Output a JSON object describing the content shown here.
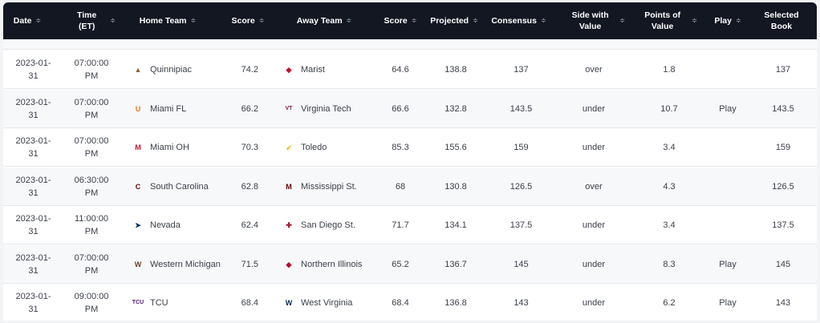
{
  "header": {
    "date": "Date",
    "time": "Time\n(ET)",
    "home_team": "Home Team",
    "home_score": "Score",
    "away_team": "Away Team",
    "away_score": "Score",
    "projected": "Projected",
    "consensus": "Consensus",
    "side_with_value": "Side with\nValue",
    "points_of_value": "Points of\nValue",
    "play": "Play",
    "selected_book": "Selected\nBook",
    "sort_glyph": "≑"
  },
  "rows": [
    {
      "date": "2023-01-\n31",
      "time": "07:00:00\nPM",
      "home": "Quinnipiac",
      "home_icon": "bobcat-logo-icon",
      "home_color": "#8a6a2f",
      "home_score": "74.2",
      "away": "Marist",
      "away_icon": "red-fox-logo-icon",
      "away_color": "#c8102e",
      "away_score": "64.6",
      "projected": "138.8",
      "consensus": "137",
      "side": "over",
      "pov": "1.8",
      "play": "",
      "book": "137"
    },
    {
      "date": "2023-01-\n31",
      "time": "07:00:00\nPM",
      "home": "Miami FL",
      "home_icon": "u-logo-icon",
      "home_color": "#f47321",
      "home_score": "66.2",
      "away": "Virginia Tech",
      "away_icon": "vt-logo-icon",
      "away_color": "#861f41",
      "away_score": "66.6",
      "projected": "132.8",
      "consensus": "143.5",
      "side": "under",
      "pov": "10.7",
      "play": "Play",
      "book": "143.5"
    },
    {
      "date": "2023-01-\n31",
      "time": "07:00:00\nPM",
      "home": "Miami OH",
      "home_icon": "m-logo-icon",
      "home_color": "#c3142d",
      "home_score": "70.3",
      "away": "Toledo",
      "away_icon": "rocket-logo-icon",
      "away_color": "#e6b800",
      "away_score": "85.3",
      "projected": "155.6",
      "consensus": "159",
      "side": "under",
      "pov": "3.4",
      "play": "",
      "book": "159"
    },
    {
      "date": "2023-01-\n31",
      "time": "06:30:00\nPM",
      "home": "South Carolina",
      "home_icon": "c-logo-icon",
      "home_color": "#73000a",
      "home_score": "62.8",
      "away": "Mississippi St.",
      "away_icon": "ms-logo-icon",
      "away_color": "#660000",
      "away_score": "68",
      "projected": "130.8",
      "consensus": "126.5",
      "side": "over",
      "pov": "4.3",
      "play": "",
      "book": "126.5"
    },
    {
      "date": "2023-01-\n31",
      "time": "11:00:00\nPM",
      "home": "Nevada",
      "home_icon": "wolf-logo-icon",
      "home_color": "#003366",
      "home_score": "62.4",
      "away": "San Diego St.",
      "away_icon": "sd-logo-icon",
      "away_color": "#a6192e",
      "away_score": "71.7",
      "projected": "134.1",
      "consensus": "137.5",
      "side": "under",
      "pov": "3.4",
      "play": "",
      "book": "137.5"
    },
    {
      "date": "2023-01-\n31",
      "time": "07:00:00\nPM",
      "home": "Western Michigan",
      "home_icon": "w-logo-icon",
      "home_color": "#6c4023",
      "home_score": "71.5",
      "away": "Northern Illinois",
      "away_icon": "husky-logo-icon",
      "away_color": "#ba0c2f",
      "away_score": "65.2",
      "projected": "136.7",
      "consensus": "145",
      "side": "under",
      "pov": "8.3",
      "play": "Play",
      "book": "145"
    },
    {
      "date": "2023-01-\n31",
      "time": "09:00:00\nPM",
      "home": "TCU",
      "home_icon": "tcu-logo-icon",
      "home_color": "#4d1979",
      "home_score": "68.4",
      "away": "West Virginia",
      "away_icon": "wv-logo-icon",
      "away_color": "#002855",
      "away_score": "68.4",
      "projected": "136.8",
      "consensus": "143",
      "side": "under",
      "pov": "6.2",
      "play": "Play",
      "book": "143"
    }
  ]
}
